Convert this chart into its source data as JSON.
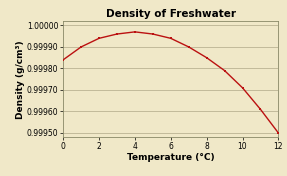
{
  "title": "Density of Freshwater",
  "xlabel": "Temperature (°C)",
  "ylabel": "Density (g/cm³)",
  "background_color": "#f0e8c8",
  "line_color": "#bb1111",
  "marker_color": "#bb1111",
  "x_data": [
    0,
    1,
    2,
    3,
    4,
    5,
    6,
    7,
    8,
    9,
    10,
    11,
    12
  ],
  "y_data": [
    0.99984,
    0.9999,
    0.99994,
    0.99996,
    0.99997,
    0.99996,
    0.99994,
    0.9999,
    0.99985,
    0.99979,
    0.99971,
    0.99961,
    0.9995
  ],
  "xlim": [
    0,
    12
  ],
  "ylim": [
    0.99948,
    1.00002
  ],
  "yticks": [
    0.9995,
    0.9996,
    0.9997,
    0.9998,
    0.9999,
    1.0
  ],
  "xticks": [
    0,
    2,
    4,
    6,
    8,
    10,
    12
  ],
  "grid_color": "#b0a888",
  "title_fontsize": 7.5,
  "label_fontsize": 6.5,
  "tick_fontsize": 5.5,
  "spine_color": "#888866"
}
